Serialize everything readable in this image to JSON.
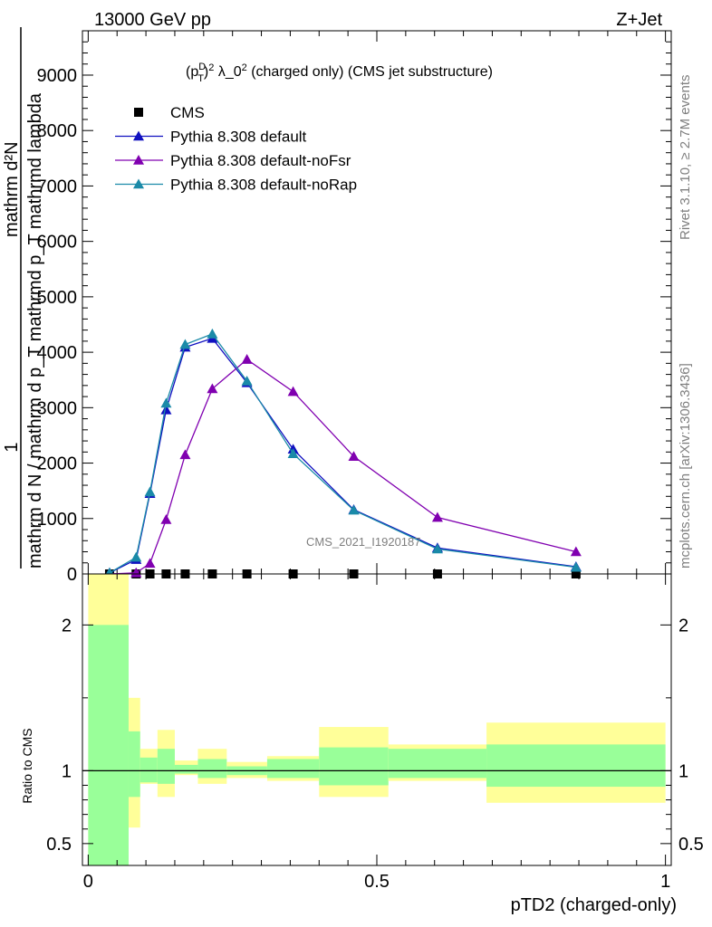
{
  "header": {
    "left": "13000 GeV pp",
    "right": "Z+Jet"
  },
  "side_labels": {
    "top": "Rivet 3.1.10, ≥ 2.7M events",
    "bottom": "mcplots.cern.ch [arXiv:1306.3436]"
  },
  "watermark": "CMS_2021_I1920187",
  "chart_data": [
    {
      "type": "line",
      "title": "(p_T^D)^2 λ_0^2 (charged only) (CMS jet substructure)",
      "ylabel_text": {
        "numerator": "1",
        "denominator": "mathrm d N / mathrm d p_T mathrmd p_T mathrmd lambda",
        "upper": "mathrm d²N"
      },
      "yticks": [
        "0",
        "1000",
        "2000",
        "3000",
        "4000",
        "5000",
        "6000",
        "7000",
        "8000",
        "9000"
      ],
      "ylim": [
        0,
        9800
      ],
      "xlim": [
        -0.01,
        1.01
      ],
      "legend_position": "top-left",
      "series": [
        {
          "name": "CMS",
          "color": "#000000",
          "marker": "square",
          "x": [
            0.037,
            0.083,
            0.107,
            0.135,
            0.168,
            0.215,
            0.275,
            0.355,
            0.46,
            0.605,
            0.845
          ],
          "y": [
            0,
            0,
            0,
            0,
            0,
            0,
            0,
            0,
            0,
            0,
            0
          ]
        },
        {
          "name": "Pythia 8.308 default",
          "color": "#1010c0",
          "marker": "triangle",
          "x": [
            0.037,
            0.083,
            0.107,
            0.135,
            0.168,
            0.215,
            0.275,
            0.355,
            0.46,
            0.605,
            0.845
          ],
          "y": [
            20,
            260,
            1450,
            2960,
            4090,
            4250,
            3450,
            2250,
            1160,
            470,
            130
          ]
        },
        {
          "name": "Pythia 8.308 default-noFsr",
          "color": "#8000b0",
          "marker": "triangle",
          "x": [
            0.037,
            0.083,
            0.107,
            0.135,
            0.168,
            0.215,
            0.275,
            0.355,
            0.46,
            0.605,
            0.845
          ],
          "y": [
            0,
            20,
            190,
            980,
            2150,
            3340,
            3870,
            3290,
            2120,
            1020,
            400
          ]
        },
        {
          "name": "Pythia 8.308 default-noRap",
          "color": "#1a8aa8",
          "marker": "triangle",
          "x": [
            0.037,
            0.083,
            0.107,
            0.135,
            0.168,
            0.215,
            0.275,
            0.355,
            0.46,
            0.605,
            0.845
          ],
          "y": [
            20,
            300,
            1480,
            3080,
            4140,
            4330,
            3480,
            2170,
            1150,
            450,
            120
          ]
        }
      ]
    },
    {
      "type": "area",
      "ylabel": "Ratio to CMS",
      "xlabel": "pTD2 (charged-only)",
      "xticks": [
        "0",
        "0.5",
        "1"
      ],
      "yticks": [
        "0.5",
        "1",
        "2"
      ],
      "ylim": [
        0.35,
        2.35
      ],
      "bins": [
        {
          "x0": 0.0,
          "x1": 0.07,
          "in": [
            0.3,
            2.0
          ],
          "out": [
            0.3,
            2.35
          ]
        },
        {
          "x0": 0.07,
          "x1": 0.09,
          "in": [
            0.82,
            1.27
          ],
          "out": [
            0.61,
            1.5
          ]
        },
        {
          "x0": 0.09,
          "x1": 0.12,
          "in": [
            0.92,
            1.09
          ],
          "out": [
            0.91,
            1.15
          ]
        },
        {
          "x0": 0.12,
          "x1": 0.15,
          "in": [
            0.91,
            1.15
          ],
          "out": [
            0.82,
            1.28
          ]
        },
        {
          "x0": 0.15,
          "x1": 0.19,
          "in": [
            0.98,
            1.04
          ],
          "out": [
            0.97,
            1.07
          ]
        },
        {
          "x0": 0.19,
          "x1": 0.24,
          "in": [
            0.95,
            1.08
          ],
          "out": [
            0.91,
            1.15
          ]
        },
        {
          "x0": 0.24,
          "x1": 0.31,
          "in": [
            0.97,
            1.03
          ],
          "out": [
            0.95,
            1.06
          ]
        },
        {
          "x0": 0.31,
          "x1": 0.4,
          "in": [
            0.95,
            1.08
          ],
          "out": [
            0.93,
            1.1
          ]
        },
        {
          "x0": 0.4,
          "x1": 0.52,
          "in": [
            0.9,
            1.16
          ],
          "out": [
            0.82,
            1.3
          ]
        },
        {
          "x0": 0.52,
          "x1": 0.69,
          "in": [
            0.95,
            1.15
          ],
          "out": [
            0.93,
            1.18
          ]
        },
        {
          "x0": 0.69,
          "x1": 1.0,
          "in": [
            0.89,
            1.18
          ],
          "out": [
            0.78,
            1.33
          ]
        }
      ]
    }
  ]
}
